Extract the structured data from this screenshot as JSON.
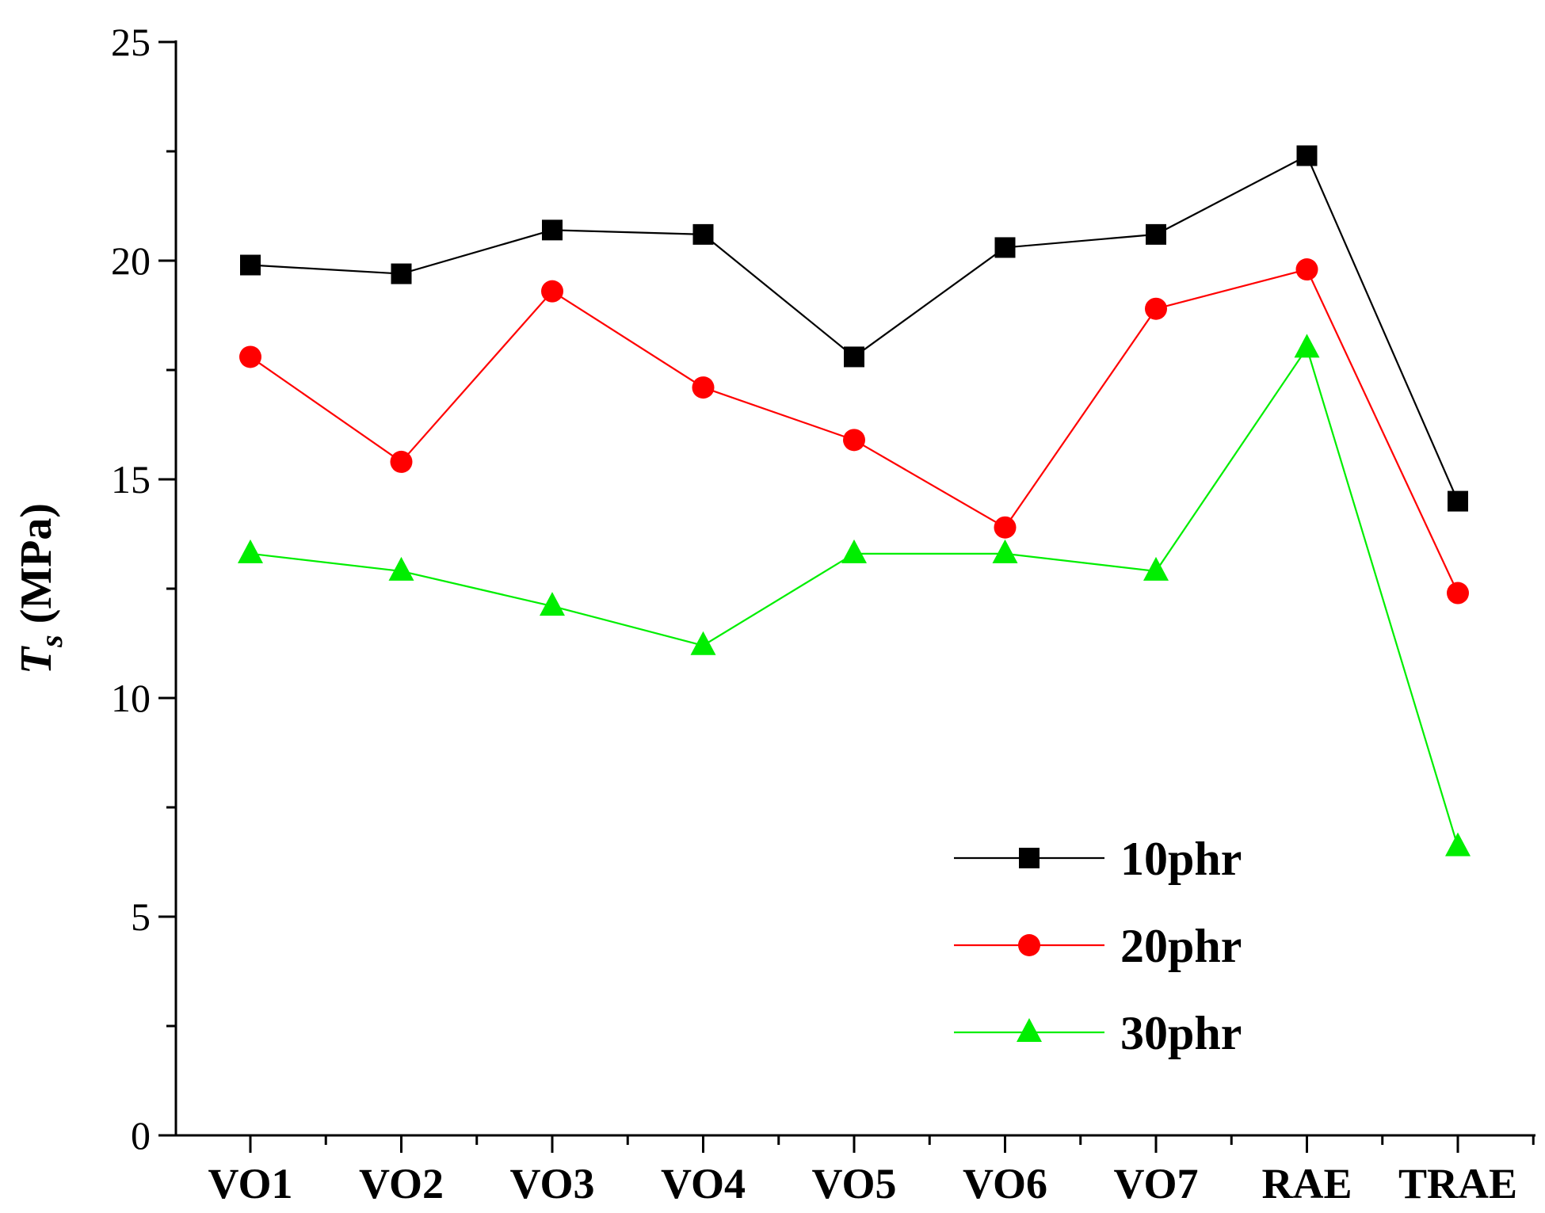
{
  "chart_data": {
    "type": "line",
    "title": "",
    "xlabel": "",
    "ylabel": {
      "symbol": "T",
      "subscript": "s",
      "unit": "(MPa)"
    },
    "ylim": [
      0,
      25
    ],
    "yticks": [
      "0",
      "5",
      "10",
      "15",
      "20",
      "25"
    ],
    "categories": [
      "VO1",
      "VO2",
      "VO3",
      "VO4",
      "VO5",
      "VO6",
      "VO7",
      "RAE",
      "TRAE"
    ],
    "series": [
      {
        "name": "10phr",
        "color": "#000000",
        "marker": "square",
        "values": [
          19.9,
          19.7,
          20.7,
          20.6,
          17.8,
          20.3,
          20.6,
          22.4,
          14.5
        ]
      },
      {
        "name": "20phr",
        "color": "#ff0000",
        "marker": "circle",
        "values": [
          17.8,
          15.4,
          19.3,
          17.1,
          15.9,
          13.9,
          18.9,
          19.8,
          12.4
        ]
      },
      {
        "name": "30phr",
        "color": "#00ee00",
        "marker": "triangle",
        "values": [
          13.3,
          12.9,
          12.1,
          11.2,
          13.3,
          13.3,
          12.9,
          18.0,
          6.6
        ]
      }
    ],
    "legend_position": "bottom-right",
    "grid": false
  }
}
